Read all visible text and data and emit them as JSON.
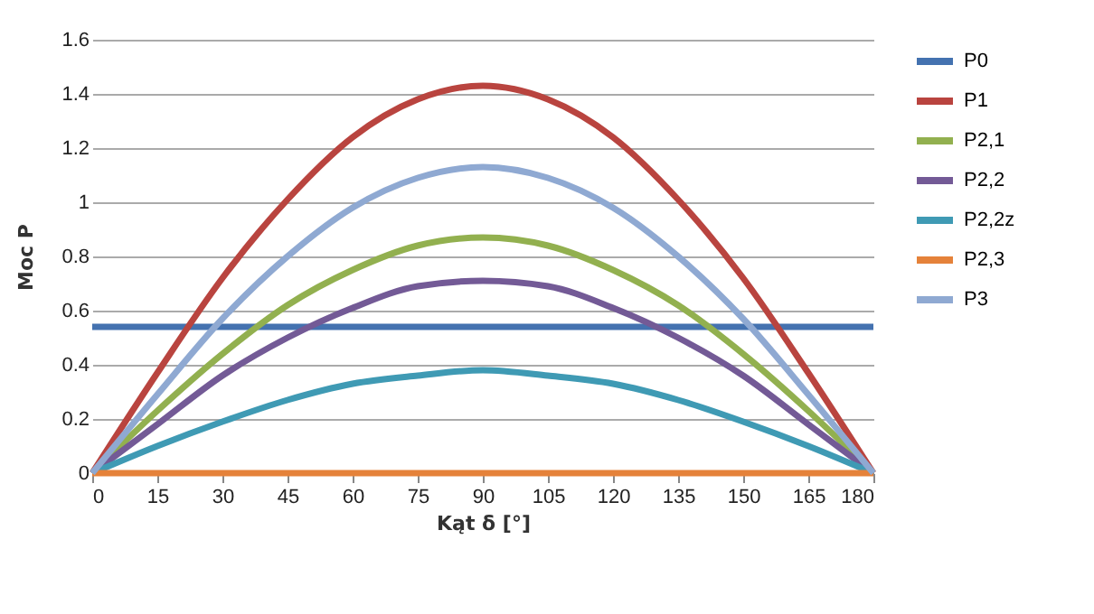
{
  "chart_data": {
    "type": "line",
    "xlabel": "Kąt δ [°]",
    "ylabel": "Moc P",
    "x": [
      0,
      15,
      30,
      45,
      60,
      75,
      90,
      105,
      120,
      135,
      150,
      165,
      180
    ],
    "series": [
      {
        "name": "P0",
        "color": "#4472b0",
        "values": [
          0.54,
          0.54,
          0.54,
          0.54,
          0.54,
          0.54,
          0.54,
          0.54,
          0.54,
          0.54,
          0.54,
          0.54,
          0.54
        ]
      },
      {
        "name": "P1",
        "color": "#b9443f",
        "values": [
          0,
          0.37,
          0.72,
          1.01,
          1.24,
          1.38,
          1.43,
          1.38,
          1.24,
          1.01,
          0.72,
          0.37,
          0
        ]
      },
      {
        "name": "P2,1",
        "color": "#92b04f",
        "values": [
          0,
          0.23,
          0.44,
          0.62,
          0.75,
          0.84,
          0.87,
          0.84,
          0.75,
          0.62,
          0.44,
          0.23,
          0
        ]
      },
      {
        "name": "P2,2",
        "color": "#735a96",
        "values": [
          0,
          0.18,
          0.36,
          0.5,
          0.61,
          0.69,
          0.71,
          0.69,
          0.61,
          0.5,
          0.36,
          0.18,
          0
        ]
      },
      {
        "name": "P2,2z",
        "color": "#3f9ab4",
        "values": [
          0,
          0.1,
          0.19,
          0.27,
          0.33,
          0.36,
          0.38,
          0.36,
          0.33,
          0.27,
          0.19,
          0.1,
          0
        ]
      },
      {
        "name": "P2,3",
        "color": "#e5823a",
        "values": [
          0,
          0,
          0,
          0,
          0,
          0,
          0,
          0,
          0,
          0,
          0,
          0,
          0
        ]
      },
      {
        "name": "P3",
        "color": "#8fa9d2",
        "values": [
          0,
          0.29,
          0.57,
          0.8,
          0.98,
          1.09,
          1.13,
          1.09,
          0.98,
          0.8,
          0.57,
          0.29,
          0
        ]
      }
    ],
    "xlim": [
      0,
      180
    ],
    "xticks": [
      0,
      15,
      30,
      45,
      60,
      75,
      90,
      105,
      120,
      135,
      150,
      165,
      180
    ],
    "ylim": [
      0,
      1.6
    ],
    "yticks": [
      0,
      0.2,
      0.4,
      0.6,
      0.8,
      1,
      1.2,
      1.4,
      1.6
    ],
    "grid": "y",
    "legend": "right",
    "marker": "none",
    "line_style": "solid"
  }
}
